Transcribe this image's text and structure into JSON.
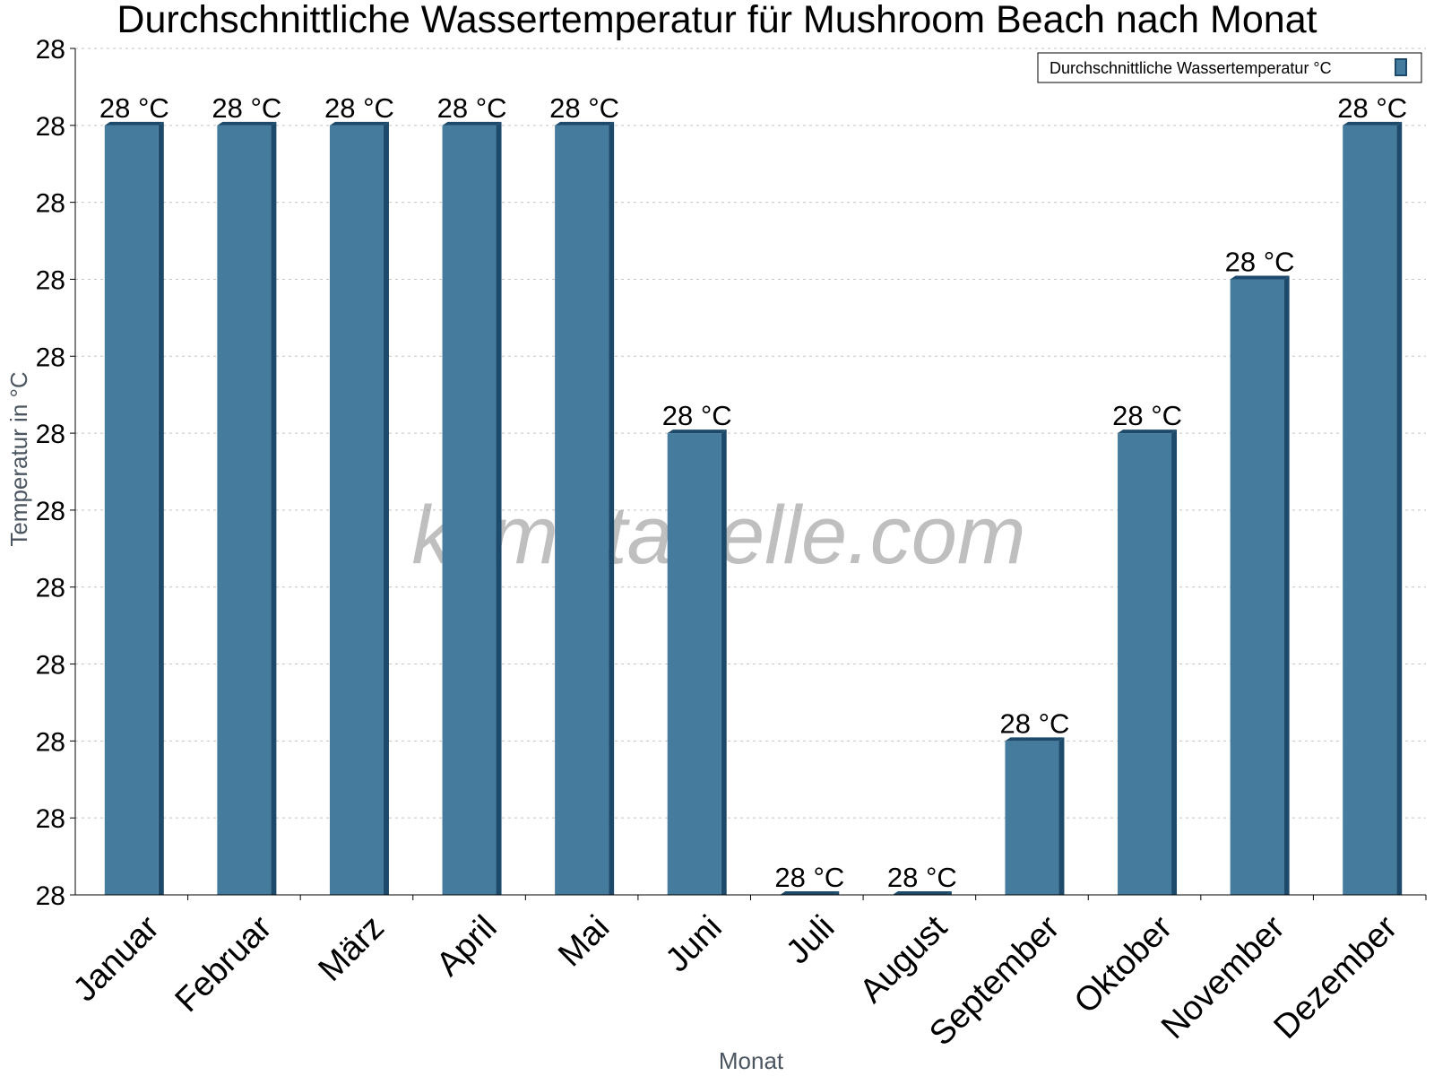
{
  "chart_data": {
    "type": "bar",
    "title": "Durchschnittliche Wassertemperatur für Mushroom Beach nach Monat",
    "xlabel": "Monat",
    "ylabel": "Temperatur in °C",
    "y_tick_labels": [
      "28",
      "28",
      "28",
      "28",
      "28",
      "28",
      "28",
      "28",
      "28",
      "28",
      "28",
      "28"
    ],
    "ylim": [
      28.0,
      28.55
    ],
    "grid": true,
    "legend_position": "top-right",
    "watermark": "klimatabelle.com",
    "bar_color": "#457b9d",
    "bar_side_color": "#1d4a6b",
    "categories": [
      "Januar",
      "Februar",
      "März",
      "April",
      "Mai",
      "Juni",
      "Juli",
      "August",
      "September",
      "Oktober",
      "November",
      "Dezember"
    ],
    "series": [
      {
        "name": "Durchschnittliche Wassertemperatur °C",
        "values": [
          28.5,
          28.5,
          28.5,
          28.5,
          28.5,
          28.3,
          28.0,
          28.0,
          28.1,
          28.3,
          28.4,
          28.5
        ],
        "labels": [
          "28 °C",
          "28 °C",
          "28 °C",
          "28 °C",
          "28 °C",
          "28 °C",
          "28 °C",
          "28 °C",
          "28 °C",
          "28 °C",
          "28 °C",
          "28 °C"
        ]
      }
    ]
  }
}
